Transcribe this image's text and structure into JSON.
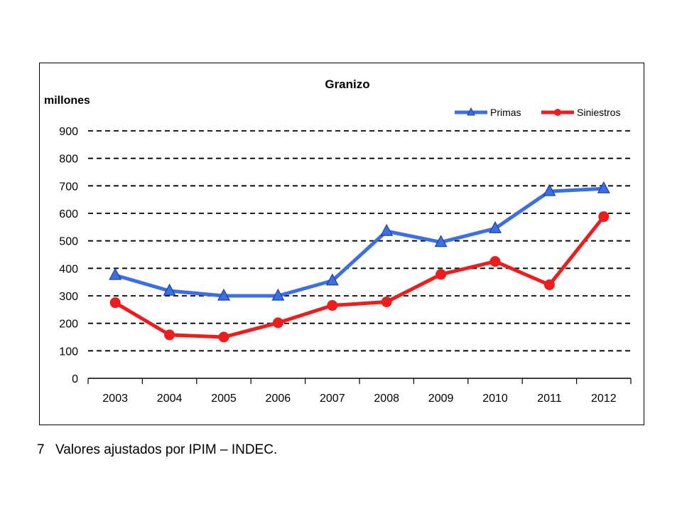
{
  "chart_data": {
    "type": "line",
    "title": "Granizo",
    "ylabel": "millones",
    "xlabel": "",
    "categories": [
      "2003",
      "2004",
      "2005",
      "2006",
      "2007",
      "2008",
      "2009",
      "2010",
      "2011",
      "2012"
    ],
    "ylim": [
      0,
      900
    ],
    "yticks": [
      0,
      100,
      200,
      300,
      400,
      500,
      600,
      700,
      800,
      900
    ],
    "grid": true,
    "legend": "top-right",
    "series": [
      {
        "name": "Primas",
        "color": "#3b6fe6",
        "marker": "triangle",
        "values": [
          375,
          318,
          300,
          300,
          355,
          535,
          495,
          545,
          680,
          690
        ]
      },
      {
        "name": "Siniestros",
        "color": "#ee1c1c",
        "marker": "circle",
        "values": [
          275,
          158,
          150,
          202,
          265,
          278,
          378,
          425,
          340,
          588
        ]
      }
    ]
  },
  "footnote": {
    "number": "7",
    "text": "Valores ajustados por IPIM – INDEC."
  }
}
